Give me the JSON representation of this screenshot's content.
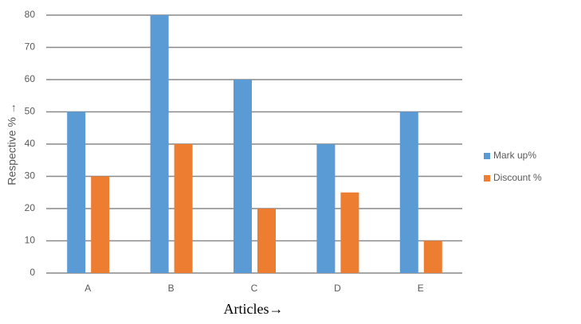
{
  "chart_data": {
    "type": "bar",
    "x_label": "Articles→",
    "y_label": "Respective % →",
    "categories": [
      "A",
      "B",
      "C",
      "D",
      "E"
    ],
    "series": [
      {
        "name": "Mark up%",
        "color": "#5b9bd5",
        "values": [
          50,
          80,
          60,
          40,
          50
        ]
      },
      {
        "name": "Discount %",
        "color": "#ed7d31",
        "values": [
          30,
          40,
          20,
          25,
          10
        ]
      }
    ],
    "ylim": [
      0,
      80
    ],
    "yticks": [
      0,
      10,
      20,
      30,
      40,
      50,
      60,
      70,
      80
    ],
    "grid": true,
    "legend": "right"
  }
}
